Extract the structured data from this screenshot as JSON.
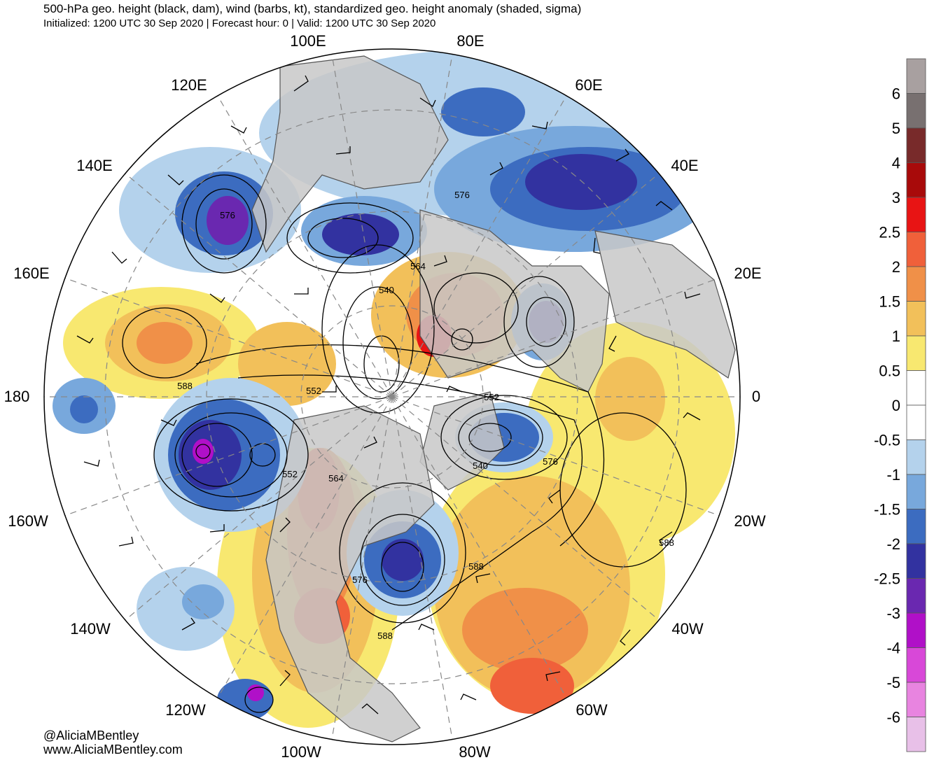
{
  "header": {
    "title": "500-hPa geo. height (black, dam), wind (barbs, kt), standardized geo. height anomaly (shaded, sigma)",
    "subtitle": "Initialized: 1200 UTC 30 Sep 2020 | Forecast hour: 0 | Valid: 1200 UTC 30 Sep 2020"
  },
  "credits": {
    "handle": "@AliciaMBentley",
    "website": "www.AliciaMBentley.com"
  },
  "map": {
    "projection": "north-polar-stereographic",
    "longitude_labels": [
      "100E",
      "80E",
      "120E",
      "60E",
      "140E",
      "40E",
      "160E",
      "20E",
      "180",
      "0",
      "160W",
      "20W",
      "140W",
      "40W",
      "120W",
      "60W",
      "100W",
      "80W"
    ],
    "contour_labels": [
      "576",
      "576",
      "564",
      "540",
      "588",
      "552",
      "552",
      "552",
      "564",
      "540",
      "576",
      "576",
      "588",
      "588",
      "588"
    ]
  },
  "legend": {
    "labels": [
      "6",
      "5",
      "4",
      "3",
      "2.5",
      "2",
      "1.5",
      "1",
      "0.5",
      "0",
      "-0.5",
      "-1",
      "-1.5",
      "-2",
      "-2.5",
      "-3",
      "-4",
      "-5",
      "-6"
    ],
    "colors": [
      "#a8a0a0",
      "#787070",
      "#782a2a",
      "#a80a0a",
      "#e81414",
      "#f0603a",
      "#f09048",
      "#f2c05a",
      "#f8e870",
      "#ffffff",
      "#ffffff",
      "#b4d2ec",
      "#78a8dc",
      "#3c6cc0",
      "#3232a0",
      "#6a28b0",
      "#b010c8",
      "#d848d8",
      "#e884e0",
      "#e8c0e8"
    ]
  },
  "colors": {
    "land": "#c8c8c8",
    "coast": "#555555",
    "contour": "#000000",
    "gridline": "#888888"
  }
}
